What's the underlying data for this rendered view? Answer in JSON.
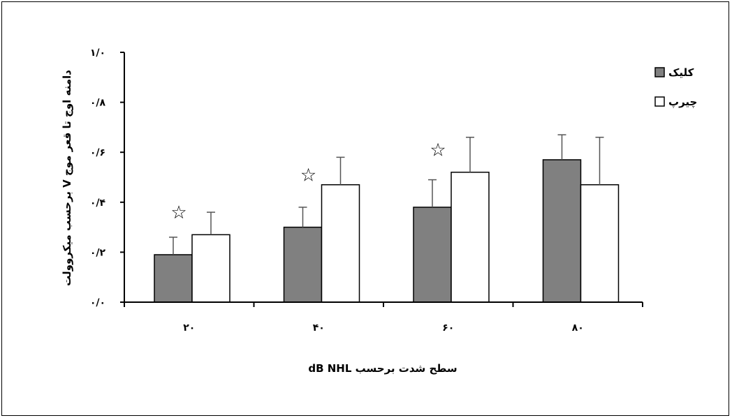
{
  "chart_data": {
    "type": "bar",
    "categories": [
      "۲۰",
      "۴۰",
      "۶۰",
      "۸۰"
    ],
    "series": [
      {
        "name": "کلیک",
        "values": [
          0.19,
          0.3,
          0.38,
          0.57
        ],
        "errors": [
          0.07,
          0.08,
          0.11,
          0.1
        ],
        "color": "#808080"
      },
      {
        "name": "چیرپ",
        "values": [
          0.27,
          0.47,
          0.52,
          0.47
        ],
        "errors": [
          0.09,
          0.11,
          0.14,
          0.19
        ],
        "color": "#ffffff"
      }
    ],
    "significance_markers": [
      {
        "category": "۲۰",
        "symbol": "☆",
        "value": 0.36
      },
      {
        "category": "۴۰",
        "symbol": "☆",
        "value": 0.51
      },
      {
        "category": "۶۰",
        "symbol": "☆",
        "value": 0.61
      }
    ],
    "xlabel": "سطح شدت برحسب dB NHL",
    "ylabel": "دامنه اوج تا قعر موج V برحسب میکروولت",
    "ylim": [
      0,
      1.0
    ],
    "yticks": [
      0,
      0.2,
      0.4,
      0.6,
      0.8,
      1.0
    ],
    "ytick_labels": [
      "۰/۰",
      "۰/۲",
      "۰/۴",
      "۰/۶",
      "۰/۸",
      "۱/۰"
    ],
    "grid": false,
    "legend_position": "right"
  }
}
